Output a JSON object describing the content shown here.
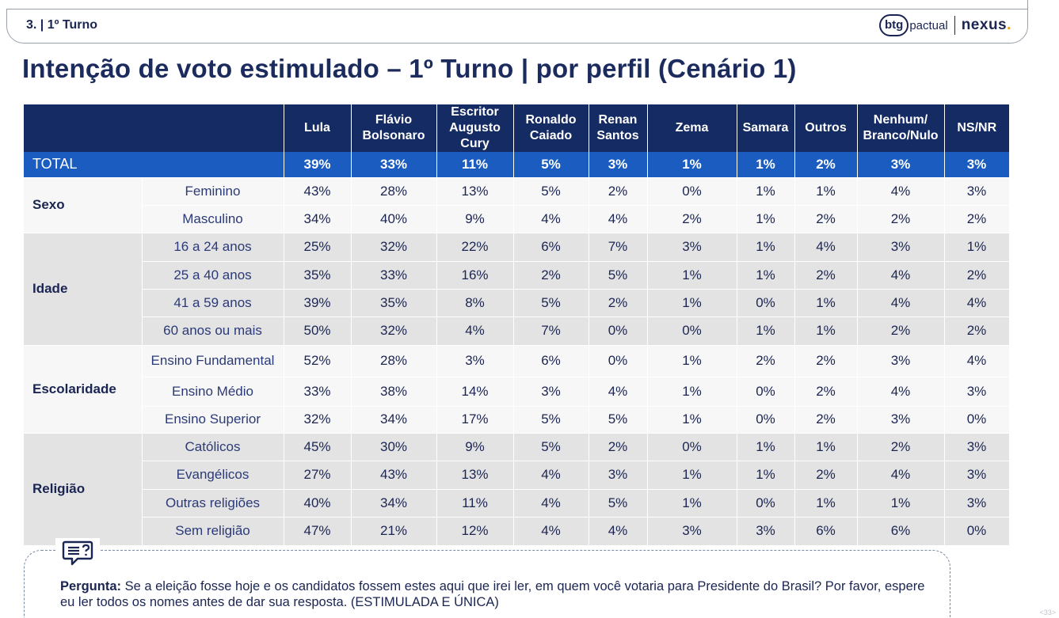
{
  "header": {
    "section_tag": "3. | 1º Turno",
    "logo_btg": "btg",
    "logo_pactual": "pactual",
    "logo_nexus": "nexus",
    "logo_nexus_dot": "."
  },
  "title": "Intenção de voto estimulado – 1º Turno | por perfil (Cenário 1)",
  "table": {
    "columns": [
      "Lula",
      "Flávio Bolsonaro",
      "Escritor Augusto Cury",
      "Ronaldo Caiado",
      "Renan Santos",
      "Zema",
      "Samara",
      "Outros",
      "Nenhum/ Branco/Nulo",
      "NS/NR"
    ],
    "total": {
      "label": "TOTAL",
      "values": [
        "39%",
        "33%",
        "11%",
        "5%",
        "3%",
        "1%",
        "1%",
        "2%",
        "3%",
        "3%"
      ]
    },
    "groups": [
      {
        "label": "Sexo",
        "rows": [
          {
            "label": "Feminino",
            "values": [
              "43%",
              "28%",
              "13%",
              "5%",
              "2%",
              "0%",
              "1%",
              "1%",
              "4%",
              "3%"
            ]
          },
          {
            "label": "Masculino",
            "values": [
              "34%",
              "40%",
              "9%",
              "4%",
              "4%",
              "2%",
              "1%",
              "2%",
              "2%",
              "2%"
            ]
          }
        ]
      },
      {
        "label": "Idade",
        "rows": [
          {
            "label": "16 a 24 anos",
            "values": [
              "25%",
              "32%",
              "22%",
              "6%",
              "7%",
              "3%",
              "1%",
              "4%",
              "3%",
              "1%"
            ]
          },
          {
            "label": "25 a 40 anos",
            "values": [
              "35%",
              "33%",
              "16%",
              "2%",
              "5%",
              "1%",
              "1%",
              "2%",
              "4%",
              "2%"
            ]
          },
          {
            "label": "41 a 59 anos",
            "values": [
              "39%",
              "35%",
              "8%",
              "5%",
              "2%",
              "1%",
              "0%",
              "1%",
              "4%",
              "4%"
            ]
          },
          {
            "label": "60 anos ou mais",
            "values": [
              "50%",
              "32%",
              "4%",
              "7%",
              "0%",
              "0%",
              "1%",
              "1%",
              "2%",
              "2%"
            ]
          }
        ]
      },
      {
        "label": "Escolaridade",
        "rows": [
          {
            "label": "Ensino Fundamental",
            "values": [
              "52%",
              "28%",
              "3%",
              "6%",
              "0%",
              "1%",
              "2%",
              "2%",
              "3%",
              "4%"
            ]
          },
          {
            "label": "Ensino Médio",
            "values": [
              "33%",
              "38%",
              "14%",
              "3%",
              "4%",
              "1%",
              "0%",
              "2%",
              "4%",
              "3%"
            ]
          },
          {
            "label": "Ensino Superior",
            "values": [
              "32%",
              "34%",
              "17%",
              "5%",
              "5%",
              "1%",
              "0%",
              "2%",
              "3%",
              "0%"
            ]
          }
        ]
      },
      {
        "label": "Religião",
        "rows": [
          {
            "label": "Católicos",
            "values": [
              "45%",
              "30%",
              "9%",
              "5%",
              "2%",
              "0%",
              "1%",
              "1%",
              "2%",
              "3%"
            ]
          },
          {
            "label": "Evangélicos",
            "values": [
              "27%",
              "43%",
              "13%",
              "4%",
              "3%",
              "1%",
              "1%",
              "2%",
              "4%",
              "3%"
            ]
          },
          {
            "label": "Outras religiões",
            "values": [
              "40%",
              "34%",
              "11%",
              "4%",
              "5%",
              "1%",
              "0%",
              "1%",
              "1%",
              "3%"
            ]
          },
          {
            "label": "Sem religião",
            "values": [
              "47%",
              "21%",
              "12%",
              "4%",
              "4%",
              "3%",
              "3%",
              "6%",
              "6%",
              "0%"
            ]
          }
        ]
      }
    ]
  },
  "question": {
    "prefix": "Pergunta:",
    "text": " Se a eleição fosse hoje e os candidatos fossem estes aqui que irei ler, em quem você votaria para Presidente do Brasil? Por favor, espere eu ler todos os nomes antes de dar sua resposta. (ESTIMULADA E ÚNICA)",
    "icon": "question-chat-icon"
  },
  "page_number": "<33>"
}
